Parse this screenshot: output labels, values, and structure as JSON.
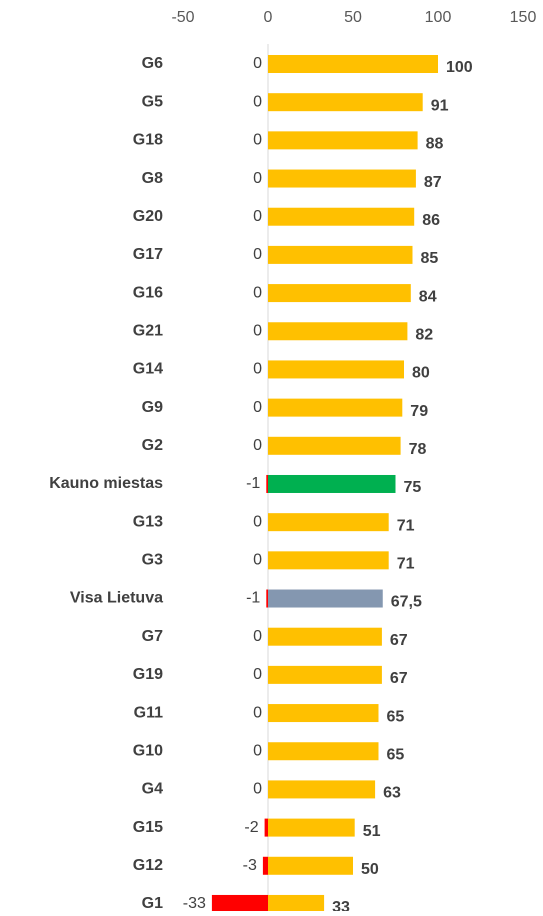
{
  "chart_data": {
    "type": "bar",
    "orientation": "horizontal",
    "categories": [
      "G6",
      "G5",
      "G18",
      "G8",
      "G20",
      "G17",
      "G16",
      "G21",
      "G14",
      "G9",
      "G2",
      "Kauno miestas",
      "G13",
      "G3",
      "Visa Lietuva",
      "G7",
      "G19",
      "G11",
      "G10",
      "G4",
      "G15",
      "G12",
      "G1"
    ],
    "series": [
      {
        "color": "#ff0000",
        "values": [
          0,
          0,
          0,
          0,
          0,
          0,
          0,
          0,
          0,
          0,
          0,
          -1,
          0,
          0,
          -1,
          0,
          0,
          0,
          0,
          0,
          -2,
          -3,
          -33
        ]
      },
      {
        "color": "#ffc000",
        "colors": [
          "#ffc000",
          "#ffc000",
          "#ffc000",
          "#ffc000",
          "#ffc000",
          "#ffc000",
          "#ffc000",
          "#ffc000",
          "#ffc000",
          "#ffc000",
          "#ffc000",
          "#00b050",
          "#ffc000",
          "#ffc000",
          "#8497b0",
          "#ffc000",
          "#ffc000",
          "#ffc000",
          "#ffc000",
          "#ffc000",
          "#ffc000",
          "#ffc000",
          "#ffc000"
        ],
        "values": [
          100,
          91,
          88,
          87,
          86,
          85,
          84,
          82,
          80,
          79,
          78,
          75,
          71,
          71,
          67.5,
          67,
          67,
          65,
          65,
          63,
          51,
          50,
          33
        ],
        "value_labels": [
          "100",
          "91",
          "88",
          "87",
          "86",
          "85",
          "84",
          "82",
          "80",
          "79",
          "78",
          "75",
          "71",
          "71",
          "67,5",
          "67",
          "67",
          "65",
          "65",
          "63",
          "51",
          "50",
          "33"
        ]
      }
    ],
    "xlim": [
      -50,
      150
    ],
    "xticks": [
      -50,
      0,
      50,
      100,
      150
    ],
    "grid": false
  }
}
